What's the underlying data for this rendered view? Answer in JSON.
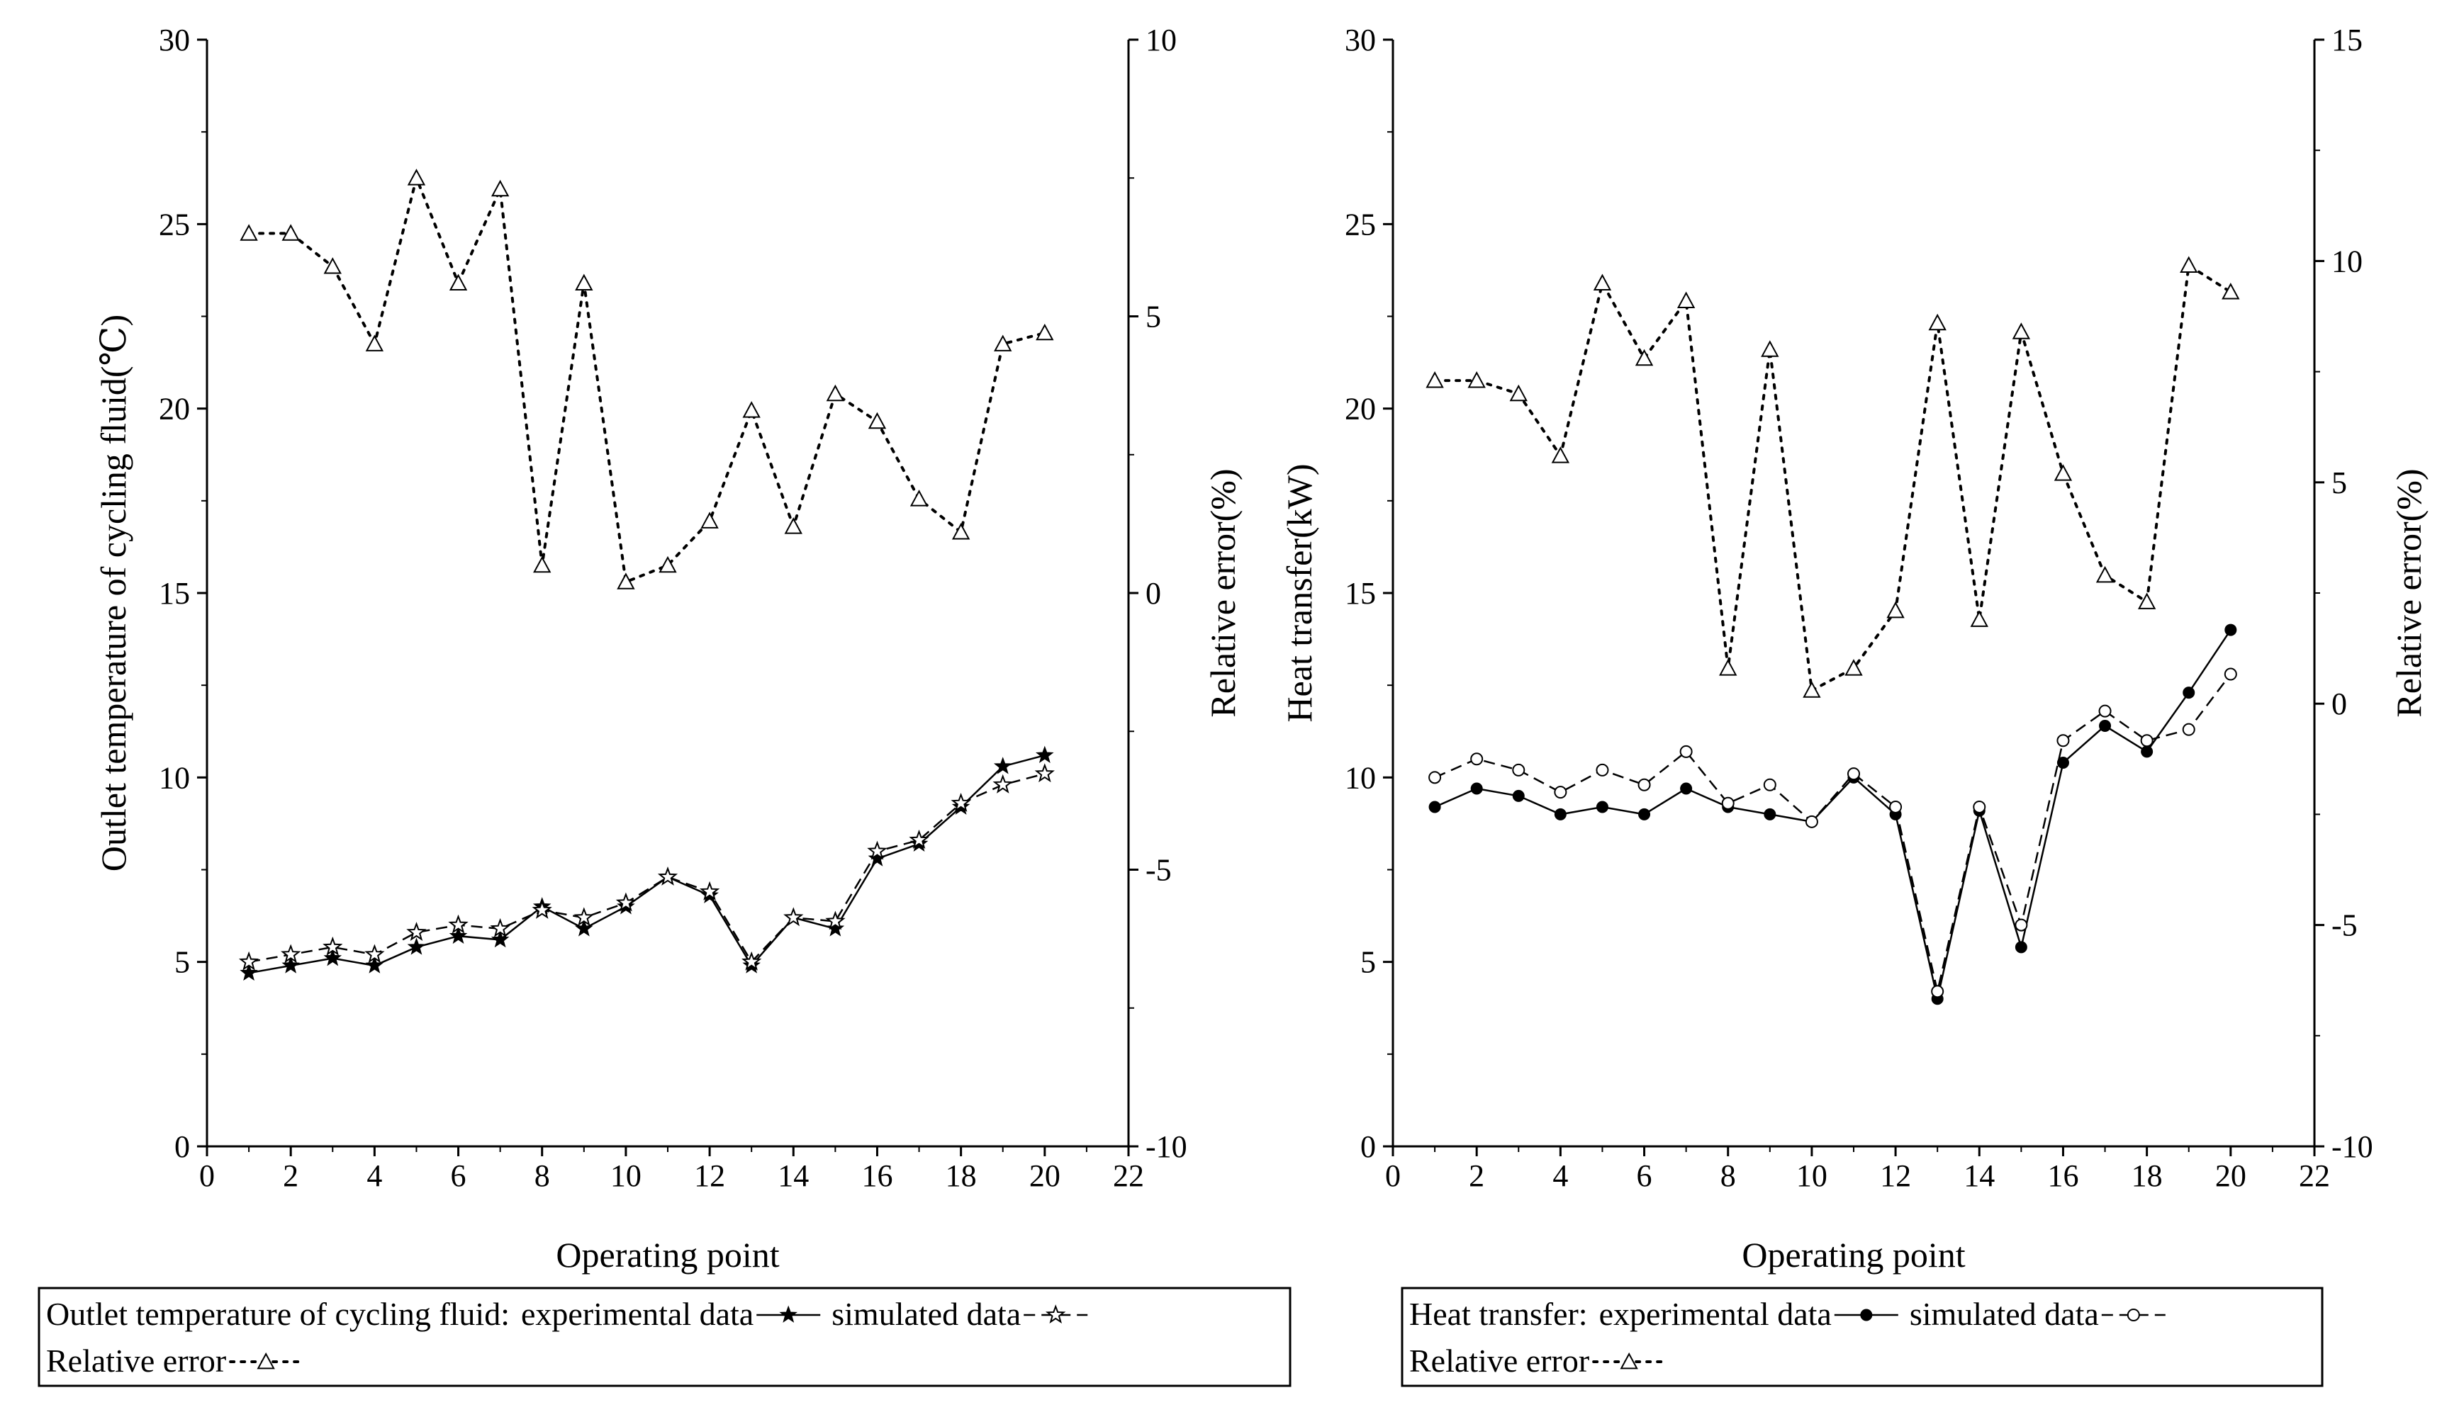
{
  "chart_data": [
    {
      "type": "line",
      "xlabel": "Operating point",
      "ylabel_left": "Outlet temperature of cycling fluid(℃)",
      "ylabel_right": "Relative error(%)",
      "xlim": [
        0,
        22
      ],
      "x_ticks": [
        "0",
        "2",
        "4",
        "6",
        "8",
        "10",
        "12",
        "14",
        "16",
        "18",
        "20",
        "22"
      ],
      "ylim_left": [
        0,
        30
      ],
      "y_ticks_left": [
        "0",
        "5",
        "10",
        "15",
        "20",
        "25",
        "30"
      ],
      "ylim_right": [
        -10,
        10
      ],
      "y_ticks_right": [
        "-10",
        "-5",
        "0",
        "5",
        "10"
      ],
      "x": [
        1,
        2,
        3,
        4,
        5,
        6,
        7,
        8,
        9,
        10,
        11,
        12,
        13,
        14,
        15,
        16,
        17,
        18,
        19,
        20
      ],
      "series": [
        {
          "name": "experimental data",
          "axis": "left",
          "marker": "star",
          "dash": "solid",
          "values": [
            4.7,
            4.9,
            5.1,
            4.9,
            5.4,
            5.7,
            5.6,
            6.5,
            5.9,
            6.5,
            7.3,
            6.8,
            4.9,
            6.2,
            5.9,
            7.8,
            8.2,
            9.2,
            10.3,
            10.6
          ]
        },
        {
          "name": "simulated data",
          "axis": "left",
          "marker": "star-open",
          "dash": "dashed",
          "values": [
            5.0,
            5.2,
            5.4,
            5.2,
            5.8,
            6.0,
            5.9,
            6.4,
            6.2,
            6.6,
            7.3,
            6.9,
            5.0,
            6.2,
            6.1,
            8.0,
            8.3,
            9.3,
            9.8,
            10.1
          ]
        },
        {
          "name": "Relative error",
          "axis": "right",
          "marker": "triangle",
          "dash": "dotted",
          "values": [
            6.5,
            6.5,
            5.9,
            4.5,
            7.5,
            5.6,
            7.3,
            0.5,
            5.6,
            0.2,
            0.5,
            1.3,
            3.3,
            1.2,
            3.6,
            3.1,
            1.7,
            1.1,
            4.5,
            4.7
          ]
        }
      ],
      "legend": {
        "line1": "Outlet temperature of cycling fluid:",
        "exp_label": "experimental data",
        "sim_label": "simulated data",
        "line2": "Relative error"
      }
    },
    {
      "type": "line",
      "xlabel": "Operating point",
      "ylabel_left": "Heat transfer(kW)",
      "ylabel_right": "Relative error(%)",
      "xlim": [
        0,
        22
      ],
      "x_ticks": [
        "0",
        "2",
        "4",
        "6",
        "8",
        "10",
        "12",
        "14",
        "16",
        "18",
        "20",
        "22"
      ],
      "ylim_left": [
        0,
        30
      ],
      "y_ticks_left": [
        "0",
        "5",
        "10",
        "15",
        "20",
        "25",
        "30"
      ],
      "ylim_right": [
        -10,
        15
      ],
      "y_ticks_right": [
        "-10",
        "-5",
        "0",
        "5",
        "10",
        "15"
      ],
      "x": [
        1,
        2,
        3,
        4,
        5,
        6,
        7,
        8,
        9,
        10,
        11,
        12,
        13,
        14,
        15,
        16,
        17,
        18,
        19,
        20
      ],
      "series": [
        {
          "name": "experimental data",
          "axis": "left",
          "marker": "circle",
          "dash": "solid",
          "values": [
            9.2,
            9.7,
            9.5,
            9.0,
            9.2,
            9.0,
            9.7,
            9.2,
            9.0,
            8.8,
            10.0,
            9.0,
            4.0,
            9.1,
            5.4,
            10.4,
            11.4,
            10.7,
            12.3,
            14.0
          ]
        },
        {
          "name": "simulated data",
          "axis": "left",
          "marker": "circle-open",
          "dash": "dashed",
          "values": [
            10.0,
            10.5,
            10.2,
            9.6,
            10.2,
            9.8,
            10.7,
            9.3,
            9.8,
            8.8,
            10.1,
            9.2,
            4.2,
            9.2,
            6.0,
            11.0,
            11.8,
            11.0,
            11.3,
            12.8
          ]
        },
        {
          "name": "Relative error",
          "axis": "right",
          "marker": "triangle",
          "dash": "dotted",
          "values": [
            7.3,
            7.3,
            7.0,
            5.6,
            9.5,
            7.8,
            9.1,
            0.8,
            8.0,
            0.3,
            0.8,
            2.1,
            8.6,
            1.9,
            8.4,
            5.2,
            2.9,
            2.3,
            9.9,
            9.3
          ]
        }
      ],
      "legend": {
        "line1": "Heat transfer:",
        "exp_label": "experimental data",
        "sim_label": "simulated data",
        "line2": "Relative error"
      }
    }
  ]
}
